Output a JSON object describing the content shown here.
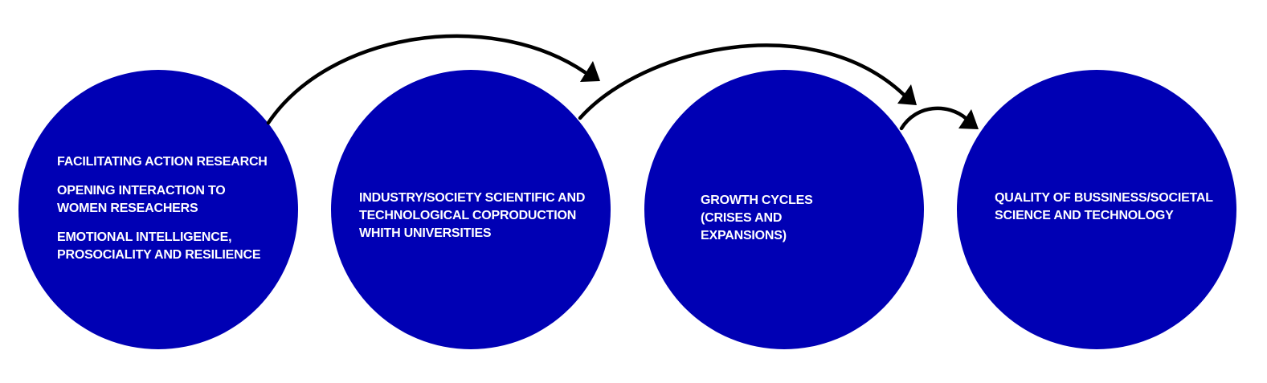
{
  "colors": {
    "circle_fill": "#0000b4",
    "text": "#ffffff",
    "arrow": "#000000",
    "background": "#ffffff"
  },
  "stages": [
    {
      "lines": [
        "FACILITATING ACTION RESEARCH",
        "OPENING INTERACTION TO WOMEN RESEACHERS",
        "EMOTIONAL INTELLIGENCE, PROSOCIALITY AND RESILIENCE"
      ]
    },
    {
      "lines": [
        "INDUSTRY/SOCIETY SCIENTIFIC AND TECHNOLOGICAL COPRODUCTION WHITH UNIVERSITIES"
      ]
    },
    {
      "lines": [
        "GROWTH CYCLES (CRISES AND EXPANSIONS)"
      ]
    },
    {
      "lines": [
        "QUALITY OF BUSSINESS/SOCIETAL SCIENCE AND TECHNOLOGY"
      ]
    }
  ],
  "connectors": [
    {
      "from": 1,
      "to": 2,
      "icon": "curved-arrow-icon"
    },
    {
      "from": 2,
      "to": 3,
      "icon": "curved-arrow-icon"
    },
    {
      "from": 3,
      "to": 4,
      "icon": "curved-arrow-icon"
    }
  ]
}
